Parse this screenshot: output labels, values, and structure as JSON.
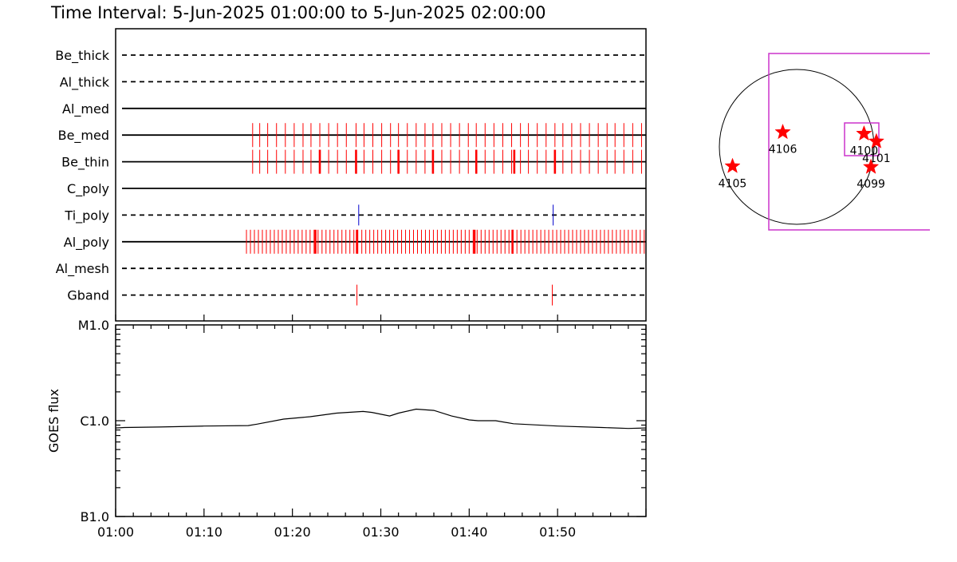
{
  "title": "Time Interval:  5-Jun-2025 01:00:00 to  5-Jun-2025 02:00:00",
  "chart_data": [
    {
      "type": "event-timeline",
      "x_start_min": 0,
      "x_end_min": 60,
      "x_ticks": [
        "01:00",
        "01:10",
        "01:20",
        "01:30",
        "01:40",
        "01:50"
      ],
      "x_tick_minutes": [
        0,
        10,
        20,
        30,
        40,
        50
      ],
      "rows": [
        {
          "label": "Be_thick",
          "style": "dashed",
          "events": []
        },
        {
          "label": "Al_thick",
          "style": "dashed",
          "events": []
        },
        {
          "label": "Al_med",
          "style": "solid",
          "events": []
        },
        {
          "label": "Be_med",
          "style": "solid",
          "color": "#ff0000",
          "tall": true,
          "events": [
            15.5,
            16.3,
            17.2,
            18.2,
            19.2,
            20.2,
            21.2,
            22.1,
            23.1,
            24.1,
            25.1,
            26.1,
            27.2,
            28.1,
            29.1,
            30.1,
            31.1,
            32.0,
            33.0,
            34.0,
            35.0,
            35.9,
            36.9,
            37.9,
            38.9,
            39.9,
            40.8,
            41.8,
            42.8,
            43.8,
            44.8,
            45.8,
            46.7,
            47.7,
            48.7,
            49.7,
            50.6,
            51.6,
            52.6,
            53.6,
            54.6,
            55.6,
            56.5,
            57.5,
            58.5,
            59.5
          ]
        },
        {
          "label": "Be_thin",
          "style": "solid",
          "color": "#ff0000",
          "tall": true,
          "events": [
            15.5,
            16.3,
            17.2,
            18.2,
            19.2,
            20.2,
            21.2,
            22.1,
            23.1,
            24.1,
            25.1,
            26.1,
            27.2,
            28.1,
            29.1,
            30.1,
            31.1,
            32.0,
            33.0,
            34.0,
            35.0,
            35.9,
            36.9,
            37.9,
            38.9,
            39.9,
            40.8,
            41.8,
            42.8,
            43.8,
            44.8,
            45.8,
            46.7,
            47.7,
            48.7,
            49.7,
            50.6,
            51.6,
            52.6,
            53.6,
            54.6,
            55.6,
            56.5,
            57.5,
            58.5,
            59.5
          ],
          "bold_events": [
            23.1,
            27.2,
            32.0,
            35.9,
            40.8,
            45.1,
            49.7
          ]
        },
        {
          "label": "C_poly",
          "style": "solid",
          "events": []
        },
        {
          "label": "Ti_poly",
          "style": "dashed",
          "color": "#0000cc",
          "events": [
            27.5,
            49.5
          ]
        },
        {
          "label": "Al_poly",
          "style": "solid",
          "color": "#ff0000",
          "tall": true,
          "dense": true,
          "dense_start": 14.8,
          "dense_end": 60,
          "dense_step": 0.45,
          "bold_events": [
            22.6,
            27.3,
            40.6,
            44.9
          ]
        },
        {
          "label": "Al_mesh",
          "style": "dashed",
          "events": []
        },
        {
          "label": "Gband",
          "style": "dashed",
          "color": "#ff0000",
          "events": [
            27.3,
            49.4
          ]
        }
      ]
    },
    {
      "type": "line",
      "ylabel": "GOES flux",
      "y_scale": "log",
      "y_ticks": [
        "M1.0",
        "C1.0",
        "B1.0"
      ],
      "y_tick_values": [
        1e-05,
        1e-06,
        1e-07
      ],
      "ylim": [
        1e-07,
        1e-05
      ],
      "x_ticks": [
        "01:00",
        "01:10",
        "01:20",
        "01:30",
        "01:40",
        "01:50"
      ],
      "x_tick_minutes": [
        0,
        10,
        20,
        30,
        40,
        50
      ],
      "series": [
        {
          "x": [
            0,
            1,
            5,
            10,
            15,
            16,
            19,
            22,
            25,
            28,
            29,
            31,
            32,
            34,
            36,
            38,
            40,
            41,
            43,
            45,
            50,
            55,
            58,
            60
          ],
          "y": [
            8.4e-07,
            8.5e-07,
            8.6e-07,
            8.8e-07,
            8.9e-07,
            9.2e-07,
            1.04e-06,
            1.1e-06,
            1.2e-06,
            1.25e-06,
            1.22e-06,
            1.12e-06,
            1.2e-06,
            1.32e-06,
            1.28e-06,
            1.12e-06,
            1.02e-06,
            1e-06,
            1e-06,
            9.3e-07,
            8.8e-07,
            8.5e-07,
            8.3e-07,
            8.4e-07
          ]
        }
      ]
    },
    {
      "type": "scatter",
      "markers": [
        {
          "label": "4106",
          "dx": -0.18,
          "dy": -0.19
        },
        {
          "label": "4100",
          "dx": 0.87,
          "dy": -0.17
        },
        {
          "label": "4101",
          "dx": 1.03,
          "dy": -0.07
        },
        {
          "label": "4099",
          "dx": 0.96,
          "dy": 0.26
        },
        {
          "label": "4105",
          "dx": -0.83,
          "dy": 0.25
        }
      ]
    }
  ]
}
